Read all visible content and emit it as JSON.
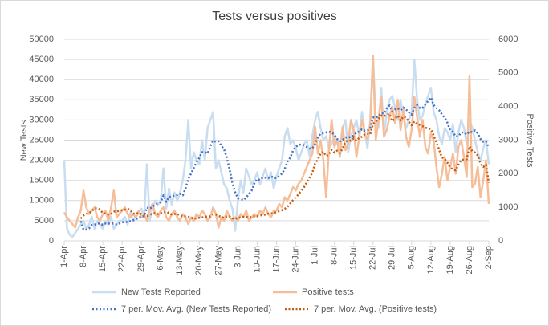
{
  "chart_data": {
    "type": "line",
    "title": "Tests versus positives",
    "ylabel": "New Tests",
    "y2label": "Positive Tests",
    "categories": [
      "1-Apr",
      null,
      null,
      null,
      null,
      null,
      null,
      "8-Apr",
      null,
      null,
      null,
      null,
      null,
      null,
      "15-Apr",
      null,
      null,
      null,
      null,
      null,
      null,
      "22-Apr",
      null,
      null,
      null,
      null,
      null,
      null,
      "29-Apr",
      null,
      null,
      null,
      null,
      null,
      null,
      "6-May",
      null,
      null,
      null,
      null,
      null,
      null,
      "13-May",
      null,
      null,
      null,
      null,
      null,
      null,
      "20-May",
      null,
      null,
      null,
      null,
      null,
      null,
      "27-May",
      null,
      null,
      null,
      null,
      null,
      null,
      "3-Jun",
      null,
      null,
      null,
      null,
      null,
      null,
      "10-Jun",
      null,
      null,
      null,
      null,
      null,
      null,
      "17-Jun",
      null,
      null,
      null,
      null,
      null,
      null,
      "24-Jun",
      null,
      null,
      null,
      null,
      null,
      null,
      "1-Jul",
      null,
      null,
      null,
      null,
      null,
      null,
      "8-Jul",
      null,
      null,
      null,
      null,
      null,
      null,
      "15-Jul",
      null,
      null,
      null,
      null,
      null,
      null,
      "22-Jul",
      null,
      null,
      null,
      null,
      null,
      null,
      "29-Jul",
      null,
      null,
      null,
      null,
      null,
      null,
      "5-Aug",
      null,
      null,
      null,
      null,
      null,
      null,
      "12-Aug",
      null,
      null,
      null,
      null,
      null,
      null,
      "19-Aug",
      null,
      null,
      null,
      null,
      null,
      null,
      "26-Aug",
      null,
      null,
      null,
      null,
      null,
      null,
      "2-Sep"
    ],
    "ylim": [
      0,
      50000
    ],
    "yticks": [
      0,
      5000,
      10000,
      15000,
      20000,
      25000,
      30000,
      35000,
      40000,
      45000,
      50000
    ],
    "y2lim": [
      0,
      6000
    ],
    "y2ticks": [
      0,
      1000,
      2000,
      3000,
      4000,
      5000,
      6000
    ],
    "grid": true,
    "legend": "bottom",
    "series": [
      {
        "name": "New Tests Reported",
        "color": "#c9ddf1",
        "line_style": "solid",
        "axis": "y",
        "values": [
          20000,
          3000,
          1500,
          1000,
          2000,
          3000,
          4000,
          5000,
          3000,
          4000,
          6000,
          3000,
          5000,
          4000,
          3000,
          5000,
          4000,
          6000,
          3000,
          4000,
          5000,
          5000,
          6000,
          4000,
          7000,
          5000,
          6000,
          7000,
          8000,
          6000,
          19000,
          5000,
          8000,
          10000,
          9000,
          10000,
          18000,
          8000,
          13000,
          9000,
          12000,
          10000,
          12000,
          15000,
          20000,
          30000,
          18000,
          22000,
          20000,
          19000,
          25000,
          20000,
          28000,
          30000,
          32000,
          18000,
          20000,
          17000,
          14000,
          13000,
          10000,
          8000,
          2500,
          10000,
          15000,
          12000,
          18000,
          16000,
          14000,
          15000,
          17000,
          14000,
          16000,
          18000,
          15000,
          17000,
          13000,
          16000,
          18000,
          20000,
          26000,
          28000,
          24000,
          25000,
          23000,
          20000,
          22000,
          24000,
          25000,
          21000,
          26000,
          30000,
          32000,
          28000,
          25000,
          26000,
          23000,
          24000,
          26000,
          25000,
          24000,
          28000,
          30000,
          22000,
          26000,
          28000,
          30000,
          26000,
          32000,
          27000,
          23000,
          30000,
          46000,
          30000,
          28000,
          38000,
          26000,
          32000,
          35000,
          36000,
          33000,
          30000,
          35000,
          31000,
          28000,
          30000,
          32000,
          45000,
          35000,
          30000,
          31000,
          34000,
          36000,
          38000,
          32000,
          30000,
          26000,
          24000,
          28000,
          27000,
          25000,
          29000,
          22000,
          27000,
          30000,
          28000,
          24000,
          30000,
          28000,
          25000,
          22000,
          20000,
          23000,
          25000,
          19000
        ]
      },
      {
        "name": "Positive tests",
        "color": "#f6be98",
        "line_style": "solid",
        "axis": "y2",
        "values": [
          850,
          700,
          600,
          500,
          400,
          700,
          900,
          1500,
          1000,
          800,
          900,
          1000,
          700,
          600,
          800,
          900,
          600,
          1000,
          1500,
          700,
          800,
          900,
          1000,
          800,
          700,
          800,
          700,
          900,
          700,
          800,
          600,
          900,
          1100,
          800,
          700,
          900,
          1000,
          700,
          600,
          800,
          900,
          700,
          600,
          800,
          700,
          500,
          700,
          600,
          800,
          700,
          900,
          800,
          600,
          700,
          1000,
          800,
          400,
          700,
          600,
          900,
          700,
          600,
          700,
          600,
          800,
          700,
          900,
          600,
          700,
          800,
          700,
          900,
          800,
          1000,
          800,
          700,
          900,
          900,
          1100,
          1000,
          1300,
          1200,
          1400,
          1600,
          1500,
          1700,
          1800,
          2000,
          2200,
          2400,
          2600,
          3400,
          2600,
          3000,
          2400,
          1300,
          2700,
          3600,
          2800,
          3000,
          2500,
          3400,
          2700,
          2900,
          3600,
          3300,
          2500,
          3100,
          3600,
          3200,
          3000,
          3500,
          5500,
          3000,
          3600,
          4300,
          3100,
          3300,
          3700,
          4000,
          3500,
          4200,
          3300,
          3900,
          3100,
          2800,
          3300,
          4300,
          3700,
          3100,
          3600,
          2800,
          2600,
          3200,
          3000,
          2200,
          1600,
          2000,
          2500,
          1800,
          2200,
          2600,
          2000,
          2800,
          3000,
          2500,
          1900,
          4900,
          1600,
          1700,
          2200,
          1300,
          1800,
          2400,
          1100
        ]
      },
      {
        "name": "7 per. Mov. Avg. (New Tests Reported)",
        "color": "#4472c4",
        "line_style": "dotted",
        "axis": "y",
        "values": [
          null,
          null,
          null,
          null,
          null,
          null,
          4900,
          2800,
          2800,
          3100,
          3900,
          4000,
          4300,
          4300,
          4000,
          4300,
          4300,
          4300,
          4300,
          4100,
          4300,
          4600,
          4700,
          4700,
          4900,
          5100,
          5400,
          5700,
          6100,
          6100,
          8300,
          8000,
          8400,
          9000,
          9300,
          9600,
          11300,
          9700,
          10900,
          11000,
          11300,
          11400,
          11700,
          11300,
          13000,
          15400,
          16700,
          18100,
          19600,
          20600,
          22000,
          22000,
          21700,
          23400,
          24900,
          24600,
          24700,
          23600,
          22700,
          20600,
          17700,
          14300,
          12100,
          10600,
          10400,
          10100,
          10800,
          11600,
          12500,
          14300,
          15300,
          15100,
          15700,
          15700,
          15600,
          16000,
          15700,
          15600,
          16100,
          16700,
          17900,
          19700,
          20700,
          22400,
          23400,
          23700,
          24000,
          23700,
          23300,
          22900,
          23000,
          24000,
          25700,
          26600,
          26700,
          26900,
          27100,
          26900,
          26300,
          25300,
          24700,
          25100,
          25700,
          25600,
          25900,
          26100,
          26900,
          27100,
          27700,
          27300,
          27400,
          28000,
          30600,
          30600,
          30900,
          31700,
          31600,
          32900,
          33600,
          32100,
          32600,
          32900,
          32400,
          33100,
          32600,
          31900,
          31300,
          33000,
          33700,
          33000,
          33000,
          33900,
          34700,
          35600,
          33700,
          33000,
          32400,
          31400,
          30600,
          29300,
          27400,
          27000,
          25900,
          26000,
          26900,
          26900,
          26400,
          27100,
          27000,
          27400,
          26700,
          25300,
          24600,
          24700,
          23100
        ]
      },
      {
        "name": "7 per. Mov. Avg. (Positive tests)",
        "color": "#c55a11",
        "line_style": "dotted",
        "axis": "y2",
        "values": [
          null,
          null,
          null,
          null,
          null,
          null,
          664,
          757,
          800,
          829,
          886,
          971,
          971,
          929,
          829,
          814,
          786,
          800,
          871,
          871,
          900,
          914,
          929,
          957,
          914,
          814,
          814,
          829,
          800,
          771,
          743,
          771,
          814,
          829,
          800,
          829,
          857,
          871,
          829,
          786,
          800,
          800,
          757,
          729,
          729,
          714,
          700,
          657,
          671,
          686,
          700,
          714,
          729,
          729,
          786,
          786,
          743,
          714,
          686,
          729,
          729,
          671,
          657,
          686,
          700,
          714,
          714,
          700,
          714,
          729,
          743,
          757,
          771,
          786,
          814,
          814,
          829,
          857,
          886,
          914,
          957,
          1014,
          1114,
          1214,
          1300,
          1386,
          1500,
          1600,
          1743,
          1886,
          2029,
          2300,
          2429,
          2600,
          2657,
          2529,
          2571,
          2714,
          2629,
          2686,
          2614,
          2757,
          2957,
          2986,
          2986,
          3057,
          2986,
          3071,
          3100,
          3171,
          3186,
          3171,
          3486,
          3557,
          3629,
          3729,
          3714,
          3757,
          3786,
          3571,
          3643,
          3729,
          3586,
          3700,
          3671,
          3543,
          3443,
          3557,
          3486,
          3457,
          3414,
          3371,
          3343,
          3329,
          3143,
          2929,
          2714,
          2486,
          2443,
          2329,
          2186,
          2129,
          2100,
          2271,
          2414,
          2414,
          2429,
          2814,
          2671,
          2629,
          2543,
          2300,
          2200,
          2271,
          1729
        ]
      }
    ]
  }
}
